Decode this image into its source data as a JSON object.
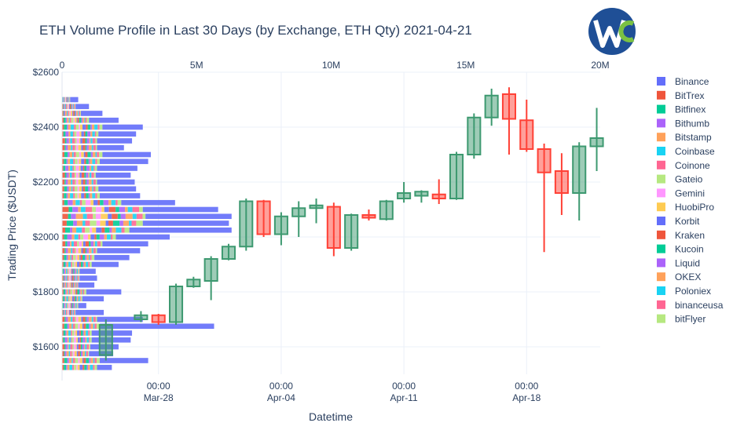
{
  "chart_data": {
    "type": "candlestick",
    "title": "ETH Volume Profile in Last 30 Days (by Exchange, ETH Qty) 2021-04-21",
    "xlabel": "Datetime",
    "ylabel": "Trading Price ($USDT)",
    "ylim": [
      1500,
      2600
    ],
    "y_ticks": [
      {
        "value": 1600,
        "label": "$1600"
      },
      {
        "value": 1800,
        "label": "$1800"
      },
      {
        "value": 2000,
        "label": "$2000"
      },
      {
        "value": 2200,
        "label": "$2200"
      },
      {
        "value": 2400,
        "label": "$2400"
      },
      {
        "value": 2600,
        "label": "$2600"
      }
    ],
    "x_ticks": [
      {
        "day": 5,
        "time": "00:00",
        "date": "Mar-28"
      },
      {
        "day": 12,
        "time": "00:00",
        "date": "Apr-04"
      },
      {
        "day": 19,
        "time": "00:00",
        "date": "Apr-11"
      },
      {
        "day": 26,
        "time": "00:00",
        "date": "Apr-18"
      }
    ],
    "x_range_days": [
      -0.5,
      30.2
    ],
    "volume_axis": {
      "range": [
        0,
        20000000
      ],
      "ticks": [
        {
          "value": 0,
          "label": "0"
        },
        {
          "value": 5000000,
          "label": "5M"
        },
        {
          "value": 10000000,
          "label": "10M"
        },
        {
          "value": 15000000,
          "label": "15M"
        },
        {
          "value": 20000000,
          "label": "20M"
        }
      ]
    },
    "increasing_color": "#3d9970",
    "decreasing_color": "#ff4136",
    "candles": [
      {
        "day": 2,
        "open": 1570,
        "high": 1700,
        "low": 1550,
        "close": 1680
      },
      {
        "day": 4,
        "open": 1700,
        "high": 1730,
        "low": 1690,
        "close": 1715
      },
      {
        "day": 5,
        "open": 1715,
        "high": 1720,
        "low": 1680,
        "close": 1690
      },
      {
        "day": 6,
        "open": 1690,
        "high": 1830,
        "low": 1680,
        "close": 1820
      },
      {
        "day": 7,
        "open": 1820,
        "high": 1855,
        "low": 1815,
        "close": 1845
      },
      {
        "day": 8,
        "open": 1840,
        "high": 1930,
        "low": 1770,
        "close": 1920
      },
      {
        "day": 9,
        "open": 1920,
        "high": 1975,
        "low": 1915,
        "close": 1965
      },
      {
        "day": 10,
        "open": 1965,
        "high": 2140,
        "low": 1950,
        "close": 2130
      },
      {
        "day": 11,
        "open": 2130,
        "high": 2135,
        "low": 2000,
        "close": 2010
      },
      {
        "day": 12,
        "open": 2010,
        "high": 2090,
        "low": 1970,
        "close": 2075
      },
      {
        "day": 13,
        "open": 2075,
        "high": 2130,
        "low": 2000,
        "close": 2105
      },
      {
        "day": 14,
        "open": 2105,
        "high": 2140,
        "low": 2050,
        "close": 2115
      },
      {
        "day": 15,
        "open": 2110,
        "high": 2125,
        "low": 1930,
        "close": 1960
      },
      {
        "day": 16,
        "open": 1960,
        "high": 2085,
        "low": 1950,
        "close": 2080
      },
      {
        "day": 17,
        "open": 2080,
        "high": 2100,
        "low": 2060,
        "close": 2070
      },
      {
        "day": 18,
        "open": 2065,
        "high": 2135,
        "low": 2060,
        "close": 2130
      },
      {
        "day": 19,
        "open": 2140,
        "high": 2200,
        "low": 2125,
        "close": 2160
      },
      {
        "day": 20,
        "open": 2150,
        "high": 2170,
        "low": 2125,
        "close": 2165
      },
      {
        "day": 21,
        "open": 2155,
        "high": 2210,
        "low": 2120,
        "close": 2140
      },
      {
        "day": 22,
        "open": 2140,
        "high": 2310,
        "low": 2135,
        "close": 2300
      },
      {
        "day": 23,
        "open": 2300,
        "high": 2450,
        "low": 2285,
        "close": 2435
      },
      {
        "day": 24,
        "open": 2435,
        "high": 2540,
        "low": 2405,
        "close": 2515
      },
      {
        "day": 25,
        "open": 2520,
        "high": 2545,
        "low": 2300,
        "close": 2430
      },
      {
        "day": 26,
        "open": 2425,
        "high": 2500,
        "low": 2310,
        "close": 2320
      },
      {
        "day": 27,
        "open": 2320,
        "high": 2340,
        "low": 1945,
        "close": 2235
      },
      {
        "day": 28,
        "open": 2240,
        "high": 2305,
        "low": 2080,
        "close": 2160
      },
      {
        "day": 29,
        "open": 2160,
        "high": 2345,
        "low": 2060,
        "close": 2330
      },
      {
        "day": 30,
        "open": 2330,
        "high": 2470,
        "low": 2240,
        "close": 2360
      }
    ],
    "series": [
      {
        "name": "Binance",
        "color": "#636efa"
      },
      {
        "name": "BitTrex",
        "color": "#ef553b"
      },
      {
        "name": "Bitfinex",
        "color": "#00cc96"
      },
      {
        "name": "Bithumb",
        "color": "#ab63fa"
      },
      {
        "name": "Bitstamp",
        "color": "#ffa15a"
      },
      {
        "name": "Coinbase",
        "color": "#19d3f3"
      },
      {
        "name": "Coinone",
        "color": "#ff6692"
      },
      {
        "name": "Gateio",
        "color": "#b6e880"
      },
      {
        "name": "Gemini",
        "color": "#ff97ff"
      },
      {
        "name": "HuobiPro",
        "color": "#fecb52"
      },
      {
        "name": "Korbit",
        "color": "#636efa"
      },
      {
        "name": "Kraken",
        "color": "#ef553b"
      },
      {
        "name": "Kucoin",
        "color": "#00cc96"
      },
      {
        "name": "Liquid",
        "color": "#ab63fa"
      },
      {
        "name": "OKEX",
        "color": "#ffa15a"
      },
      {
        "name": "Poloniex",
        "color": "#19d3f3"
      },
      {
        "name": "binanceusa",
        "color": "#ff6692"
      },
      {
        "name": "bitFlyer",
        "color": "#b6e880"
      }
    ],
    "volume_profile": [
      {
        "price": 1525,
        "other": 1300000,
        "binance": 550000
      },
      {
        "price": 1550,
        "other": 1400000,
        "binance": 1800000
      },
      {
        "price": 1575,
        "other": 1000000,
        "binance": 900000
      },
      {
        "price": 1600,
        "other": 1050000,
        "binance": 1050000
      },
      {
        "price": 1625,
        "other": 1100000,
        "binance": 1450000
      },
      {
        "price": 1650,
        "other": 1100000,
        "binance": 1500000
      },
      {
        "price": 1675,
        "other": 1400000,
        "binance": 4250000
      },
      {
        "price": 1700,
        "other": 1300000,
        "binance": 1700000
      },
      {
        "price": 1725,
        "other": 500000,
        "binance": 1050000
      },
      {
        "price": 1750,
        "other": 600000,
        "binance": 300000
      },
      {
        "price": 1775,
        "other": 750000,
        "binance": 800000
      },
      {
        "price": 1800,
        "other": 900000,
        "binance": 1300000
      },
      {
        "price": 1825,
        "other": 600000,
        "binance": 600000
      },
      {
        "price": 1850,
        "other": 650000,
        "binance": 650000
      },
      {
        "price": 1875,
        "other": 650000,
        "binance": 600000
      },
      {
        "price": 1900,
        "other": 1100000,
        "binance": 1000000
      },
      {
        "price": 1925,
        "other": 1200000,
        "binance": 1300000
      },
      {
        "price": 1950,
        "other": 1300000,
        "binance": 1600000
      },
      {
        "price": 1975,
        "other": 1500000,
        "binance": 1700000
      },
      {
        "price": 2000,
        "other": 2000000,
        "binance": 2000000
      },
      {
        "price": 2025,
        "other": 2500000,
        "binance": 3800000
      },
      {
        "price": 2050,
        "other": 3000000,
        "binance": 3200000
      },
      {
        "price": 2075,
        "other": 3100000,
        "binance": 3200000
      },
      {
        "price": 2100,
        "other": 3000000,
        "binance": 2800000
      },
      {
        "price": 2125,
        "other": 2200000,
        "binance": 2000000
      },
      {
        "price": 2150,
        "other": 1400000,
        "binance": 1500000
      },
      {
        "price": 2175,
        "other": 1350000,
        "binance": 1400000
      },
      {
        "price": 2200,
        "other": 1300000,
        "binance": 1400000
      },
      {
        "price": 2225,
        "other": 1250000,
        "binance": 1300000
      },
      {
        "price": 2250,
        "other": 1300000,
        "binance": 1500000
      },
      {
        "price": 2275,
        "other": 1400000,
        "binance": 1800000
      },
      {
        "price": 2300,
        "other": 1500000,
        "binance": 1800000
      },
      {
        "price": 2325,
        "other": 1300000,
        "binance": 1000000
      },
      {
        "price": 2350,
        "other": 1300000,
        "binance": 1300000
      },
      {
        "price": 2375,
        "other": 1350000,
        "binance": 1400000
      },
      {
        "price": 2400,
        "other": 1500000,
        "binance": 1500000
      },
      {
        "price": 2425,
        "other": 1000000,
        "binance": 1100000
      },
      {
        "price": 2450,
        "other": 700000,
        "binance": 800000
      },
      {
        "price": 2475,
        "other": 500000,
        "binance": 500000
      },
      {
        "price": 2500,
        "other": 300000,
        "binance": 300000
      }
    ]
  },
  "logo": {
    "letters": "WC"
  }
}
